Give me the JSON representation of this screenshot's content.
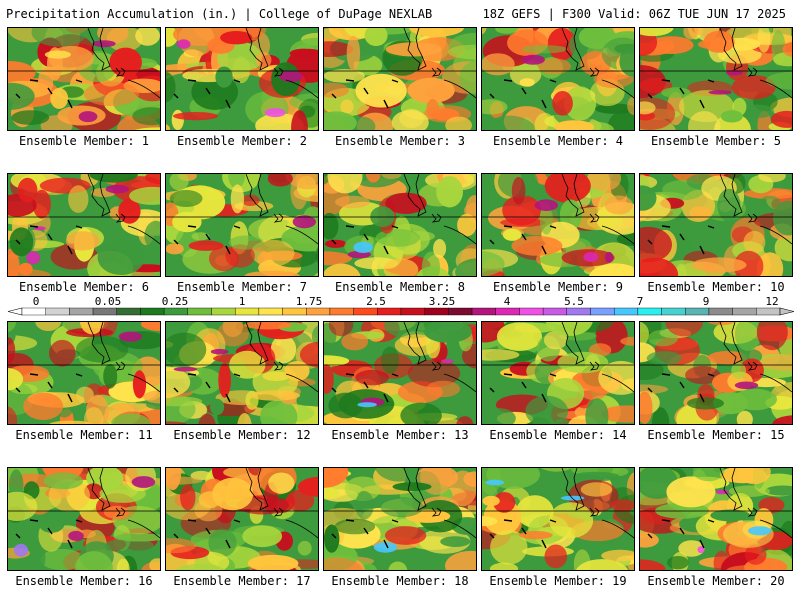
{
  "header": {
    "left": "Precipitation Accumulation (in.) | College of DuPage NEXLAB",
    "right": "18Z GEFS | F300 Valid: 06Z TUE JUN 17 2025"
  },
  "caption_prefix": "Ensemble Member:",
  "members": [
    {
      "id": 1,
      "label": "Ensemble Member: 1"
    },
    {
      "id": 2,
      "label": "Ensemble Member: 2"
    },
    {
      "id": 3,
      "label": "Ensemble Member: 3"
    },
    {
      "id": 4,
      "label": "Ensemble Member: 4"
    },
    {
      "id": 5,
      "label": "Ensemble Member: 5"
    },
    {
      "id": 6,
      "label": "Ensemble Member: 6"
    },
    {
      "id": 7,
      "label": "Ensemble Member: 7"
    },
    {
      "id": 8,
      "label": "Ensemble Member: 8"
    },
    {
      "id": 9,
      "label": "Ensemble Member: 9"
    },
    {
      "id": 10,
      "label": "Ensemble Member: 10"
    },
    {
      "id": 11,
      "label": "Ensemble Member: 11"
    },
    {
      "id": 12,
      "label": "Ensemble Member: 12"
    },
    {
      "id": 13,
      "label": "Ensemble Member: 13"
    },
    {
      "id": 14,
      "label": "Ensemble Member: 14"
    },
    {
      "id": 15,
      "label": "Ensemble Member: 15"
    },
    {
      "id": 16,
      "label": "Ensemble Member: 16"
    },
    {
      "id": 17,
      "label": "Ensemble Member: 17"
    },
    {
      "id": 18,
      "label": "Ensemble Member: 18"
    },
    {
      "id": 19,
      "label": "Ensemble Member: 19"
    },
    {
      "id": 20,
      "label": "Ensemble Member: 20"
    }
  ],
  "colorbar": {
    "tick_labels": [
      "0",
      "0.05",
      "0.25",
      "1",
      "1.75",
      "2.5",
      "3.25",
      "4",
      "5.5",
      "7",
      "9",
      "12"
    ],
    "colors": [
      "#ffffff",
      "#d2d2d2",
      "#a5a5a5",
      "#787878",
      "#346e34",
      "#1e7a1e",
      "#3d9a3d",
      "#6fbf3d",
      "#a8d63d",
      "#e6e63d",
      "#ffe34d",
      "#ffc63d",
      "#ffa23d",
      "#ff7b2e",
      "#ff4a1e",
      "#e61e1e",
      "#c80f1e",
      "#a0001e",
      "#7d0a32",
      "#b4147d",
      "#dc28b4",
      "#f050e6",
      "#c85ae6",
      "#a078f0",
      "#78a0ff",
      "#46c8ff",
      "#28f0f0",
      "#46d2d2",
      "#5ab4b4",
      "#8c8c8c",
      "#a5a5a5",
      "#c3c3c3"
    ]
  }
}
